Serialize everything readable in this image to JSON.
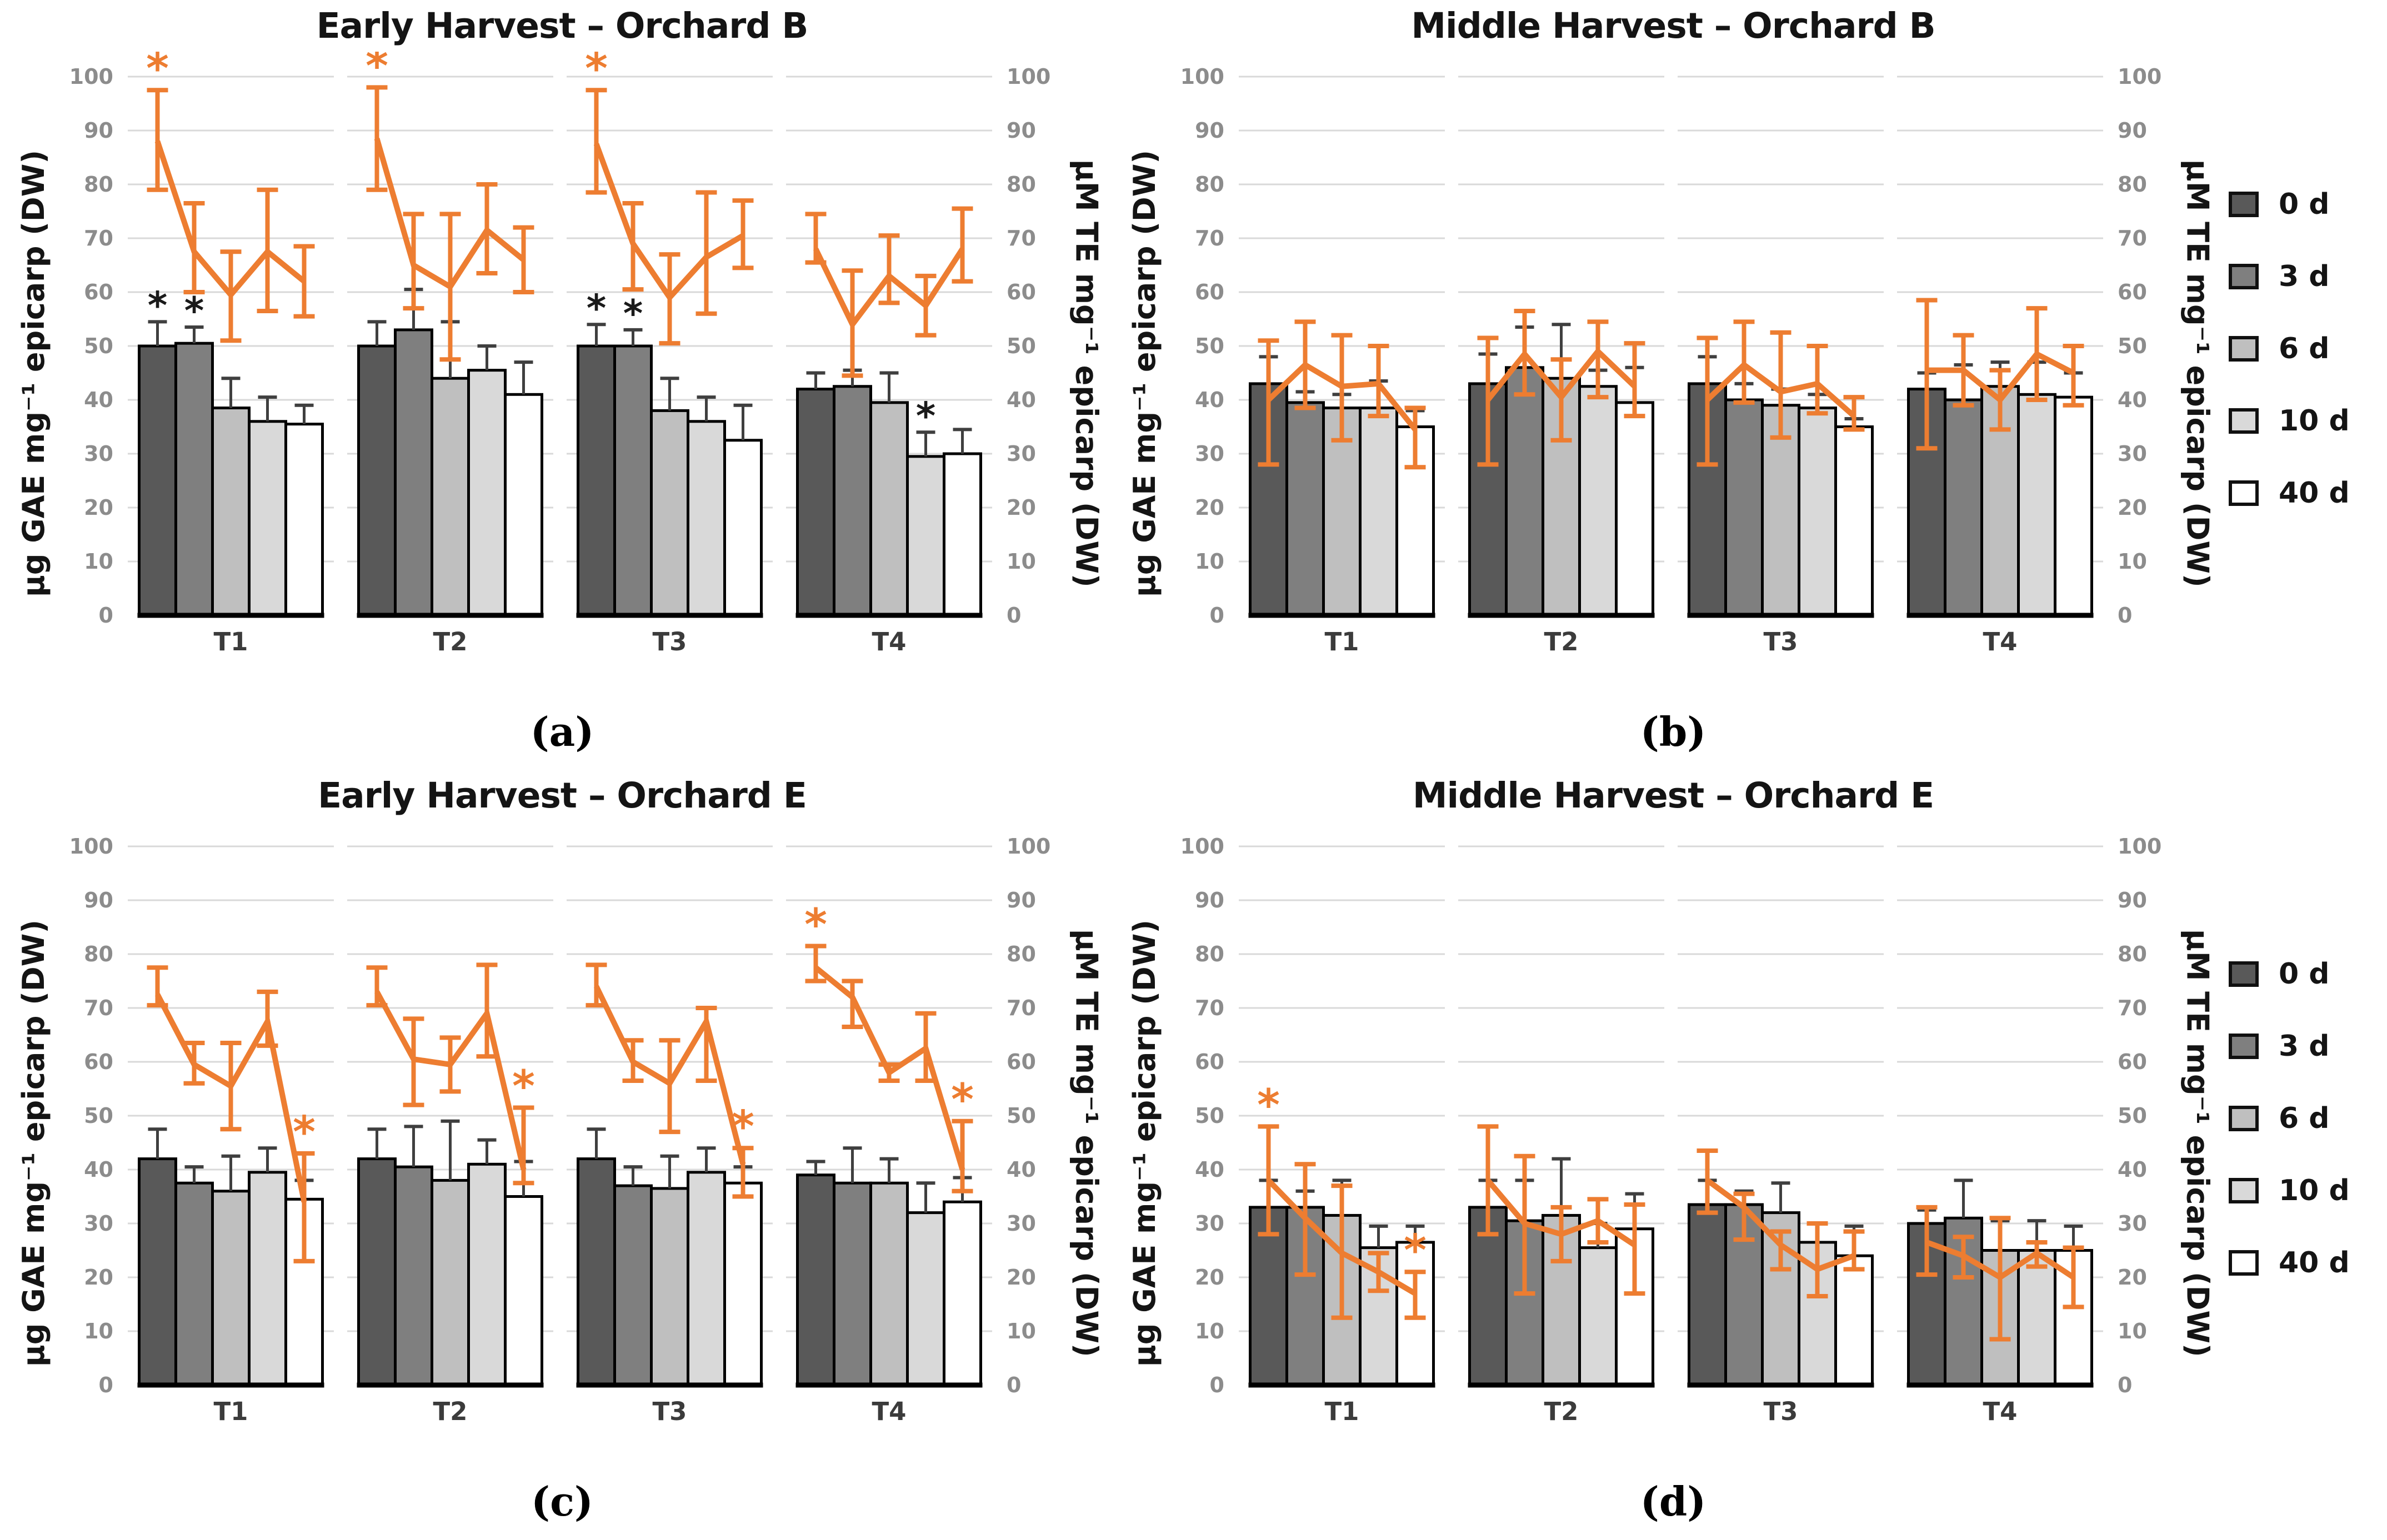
{
  "figure": {
    "kind": "2x2 grouped bar + line panels",
    "background": "#ffffff"
  },
  "colors": {
    "orange": "#ED7D31",
    "bar_border": "#000000",
    "bar_error": "#3f3f3f",
    "grid": "#d9d9d9",
    "tick_text": "#8c8c8c",
    "category_text": "#3b3b3b",
    "star_black": "#1a1a1a",
    "bar_fills": [
      "#595959",
      "#7f7f7f",
      "#bfbfbf",
      "#d9d9d9",
      "#ffffff"
    ]
  },
  "legend": {
    "items": [
      {
        "label": "0 d",
        "color": "#595959"
      },
      {
        "label": "3 d",
        "color": "#7f7f7f"
      },
      {
        "label": "6 d",
        "color": "#bfbfbf"
      },
      {
        "label": "10 d",
        "color": "#d9d9d9"
      },
      {
        "label": "40 d",
        "color": "#ffffff"
      }
    ]
  },
  "axes": {
    "left_label": "µg GAE mg⁻¹ epicarp (DW)",
    "right_label": "µM TE mg⁻¹ epicarp (DW)",
    "ticks": [
      0,
      10,
      20,
      30,
      40,
      50,
      60,
      70,
      80,
      90,
      100
    ],
    "ylim": [
      0,
      100
    ]
  },
  "chart_data": [
    {
      "id": "a",
      "type": "bar+line",
      "title": "Early Harvest – Orchard B",
      "caption": "(a)",
      "categories": [
        "T1",
        "T2",
        "T3",
        "T4"
      ],
      "bar_series_labels": [
        "0 d",
        "3 d",
        "6 d",
        "10 d",
        "40 d"
      ],
      "ylim": [
        0,
        100
      ],
      "bars": [
        [
          50,
          50.5,
          38.5,
          36,
          35.5
        ],
        [
          50,
          53,
          44,
          45.5,
          41
        ],
        [
          50,
          50,
          38,
          36,
          32.5
        ],
        [
          42,
          42.5,
          39.5,
          29.5,
          30
        ]
      ],
      "bar_err_up": [
        [
          4.5,
          3,
          5.5,
          4.5,
          3.5
        ],
        [
          4.5,
          7.5,
          10.5,
          4.5,
          6
        ],
        [
          4,
          3,
          6,
          4.5,
          6.5
        ],
        [
          3,
          3,
          5.5,
          4.5,
          4.5
        ]
      ],
      "bar_star_points": [
        [
          0,
          0
        ],
        [
          0,
          1
        ],
        [
          2,
          0
        ],
        [
          2,
          1
        ],
        [
          3,
          3
        ]
      ],
      "line": [
        [
          88,
          67.5,
          59.5,
          67.5,
          62
        ],
        [
          88.5,
          65,
          61,
          71.5,
          66
        ],
        [
          87.5,
          69,
          59,
          66.5,
          70.5
        ],
        [
          68,
          54,
          63,
          57.5,
          68
        ]
      ],
      "line_err_lo": [
        [
          79,
          60,
          51,
          56.5,
          55.5
        ],
        [
          79,
          57,
          47.5,
          63.5,
          60
        ],
        [
          78.5,
          60.5,
          50.5,
          56,
          64.5
        ],
        [
          65.5,
          44.5,
          58,
          52,
          62
        ]
      ],
      "line_err_hi": [
        [
          97.5,
          76.5,
          67.5,
          79,
          68.5
        ],
        [
          98,
          74.5,
          74.5,
          80,
          72
        ],
        [
          97.5,
          76.5,
          67,
          78.5,
          77
        ],
        [
          74.5,
          64,
          70.5,
          63,
          75.5
        ]
      ],
      "line_star_points": [
        [
          0,
          0
        ],
        [
          1,
          0
        ],
        [
          2,
          0
        ]
      ]
    },
    {
      "id": "b",
      "type": "bar+line",
      "title": "Middle Harvest – Orchard B",
      "caption": "(b)",
      "categories": [
        "T1",
        "T2",
        "T3",
        "T4"
      ],
      "bar_series_labels": [
        "0 d",
        "3 d",
        "6 d",
        "10 d",
        "40 d"
      ],
      "ylim": [
        0,
        100
      ],
      "bars": [
        [
          43,
          39.5,
          38.5,
          38.5,
          35
        ],
        [
          43,
          46,
          44,
          42.5,
          39.5
        ],
        [
          43,
          40,
          39,
          38.5,
          35
        ],
        [
          42,
          40,
          42.5,
          41,
          40.5
        ]
      ],
      "bar_err_up": [
        [
          5,
          2,
          2.5,
          5,
          3
        ],
        [
          5.5,
          7.5,
          10,
          3,
          6.5
        ],
        [
          5,
          3,
          3,
          2.5,
          1.5
        ],
        [
          3,
          6.5,
          4.5,
          6,
          4.5
        ]
      ],
      "bar_star_points": [],
      "line": [
        [
          40,
          46.5,
          42.5,
          43,
          34.5
        ],
        [
          40,
          48.5,
          40.5,
          49,
          42.5
        ],
        [
          40,
          46.5,
          41.5,
          43,
          37
        ],
        [
          45.5,
          45.5,
          40,
          48.5,
          45
        ]
      ],
      "line_err_lo": [
        [
          28,
          38.5,
          32.5,
          37,
          27.5
        ],
        [
          28,
          41,
          32.5,
          40.5,
          37
        ],
        [
          28,
          39.5,
          33,
          37.5,
          34.5
        ],
        [
          31,
          39,
          34.5,
          40,
          39
        ]
      ],
      "line_err_hi": [
        [
          51,
          54.5,
          52,
          50,
          38.5
        ],
        [
          51.5,
          56.5,
          47.5,
          54.5,
          50.5
        ],
        [
          51.5,
          54.5,
          52.5,
          50,
          40.5
        ],
        [
          58.5,
          52,
          45.5,
          57,
          50
        ]
      ],
      "line_star_points": []
    },
    {
      "id": "c",
      "type": "bar+line",
      "title": "Early Harvest – Orchard E",
      "caption": "(c)",
      "categories": [
        "T1",
        "T2",
        "T3",
        "T4"
      ],
      "bar_series_labels": [
        "0 d",
        "3 d",
        "6 d",
        "10 d",
        "40 d"
      ],
      "ylim": [
        0,
        100
      ],
      "bars": [
        [
          42,
          37.5,
          36,
          39.5,
          34.5
        ],
        [
          42,
          40.5,
          38,
          41,
          35
        ],
        [
          42,
          37,
          36.5,
          39.5,
          37.5
        ],
        [
          39,
          37.5,
          37.5,
          32,
          34
        ]
      ],
      "bar_err_up": [
        [
          5.5,
          3,
          6.5,
          4.5,
          3.5
        ],
        [
          5.5,
          7.5,
          11,
          4.5,
          6.5
        ],
        [
          5.5,
          3.5,
          6,
          4.5,
          3
        ],
        [
          2.5,
          6.5,
          4.5,
          5.5,
          4.5
        ]
      ],
      "bar_star_points": [],
      "line": [
        [
          72.5,
          59.5,
          55.5,
          67.5,
          34
        ],
        [
          73,
          60.5,
          59.5,
          69,
          40
        ],
        [
          74,
          60,
          56,
          67.5,
          41
        ],
        [
          77.5,
          72,
          58,
          62.5,
          40
        ]
      ],
      "line_err_lo": [
        [
          70.5,
          56,
          47.5,
          63,
          23
        ],
        [
          70.5,
          52,
          54.5,
          61,
          37.5
        ],
        [
          70.5,
          56.5,
          47,
          56.5,
          35
        ],
        [
          75,
          66.5,
          56.5,
          56.5,
          36
        ]
      ],
      "line_err_hi": [
        [
          77.5,
          63.5,
          63.5,
          73,
          43
        ],
        [
          77.5,
          68,
          64.5,
          78,
          51.5
        ],
        [
          78,
          64,
          64,
          70,
          44
        ],
        [
          81.5,
          75,
          59.5,
          69,
          49
        ]
      ],
      "line_star_points": [
        [
          0,
          4
        ],
        [
          1,
          4
        ],
        [
          2,
          4
        ],
        [
          3,
          0
        ],
        [
          3,
          4
        ]
      ]
    },
    {
      "id": "d",
      "type": "bar+line",
      "title": "Middle Harvest – Orchard E",
      "caption": "(d)",
      "categories": [
        "T1",
        "T2",
        "T3",
        "T4"
      ],
      "bar_series_labels": [
        "0 d",
        "3 d",
        "6 d",
        "10 d",
        "40 d"
      ],
      "ylim": [
        0,
        100
      ],
      "bars": [
        [
          33,
          33,
          31.5,
          25.5,
          26.5
        ],
        [
          33,
          30.5,
          31.5,
          25.5,
          29
        ],
        [
          33.5,
          33.5,
          32,
          26.5,
          24
        ],
        [
          30,
          31,
          25,
          25,
          25
        ]
      ],
      "bar_err_up": [
        [
          5,
          3,
          6.5,
          4,
          3
        ],
        [
          5,
          7.5,
          10.5,
          4.5,
          6.5
        ],
        [
          4.5,
          2.5,
          5.5,
          3.5,
          5.5
        ],
        [
          2.5,
          7,
          5.5,
          5.5,
          4.5
        ]
      ],
      "bar_star_points": [],
      "line": [
        [
          38,
          31,
          24.5,
          21,
          17
        ],
        [
          38,
          30,
          28,
          30.5,
          26
        ],
        [
          38,
          33,
          26,
          21.5,
          24
        ],
        [
          26.5,
          24,
          20,
          24.5,
          20
        ]
      ],
      "line_err_lo": [
        [
          28,
          20.5,
          12.5,
          17.5,
          12.5
        ],
        [
          28,
          17,
          23,
          26.5,
          17
        ],
        [
          32,
          27,
          21.5,
          16.5,
          21.5
        ],
        [
          20.5,
          20,
          8.5,
          22,
          14.5
        ]
      ],
      "line_err_hi": [
        [
          48,
          41,
          37,
          24.5,
          21
        ],
        [
          48,
          42.5,
          33,
          34.5,
          33.5
        ],
        [
          43.5,
          35.5,
          28.5,
          30,
          28.5
        ],
        [
          33,
          27.5,
          31,
          26.5,
          25.5
        ]
      ],
      "line_star_points": [
        [
          0,
          0
        ],
        [
          0,
          4
        ]
      ]
    }
  ]
}
